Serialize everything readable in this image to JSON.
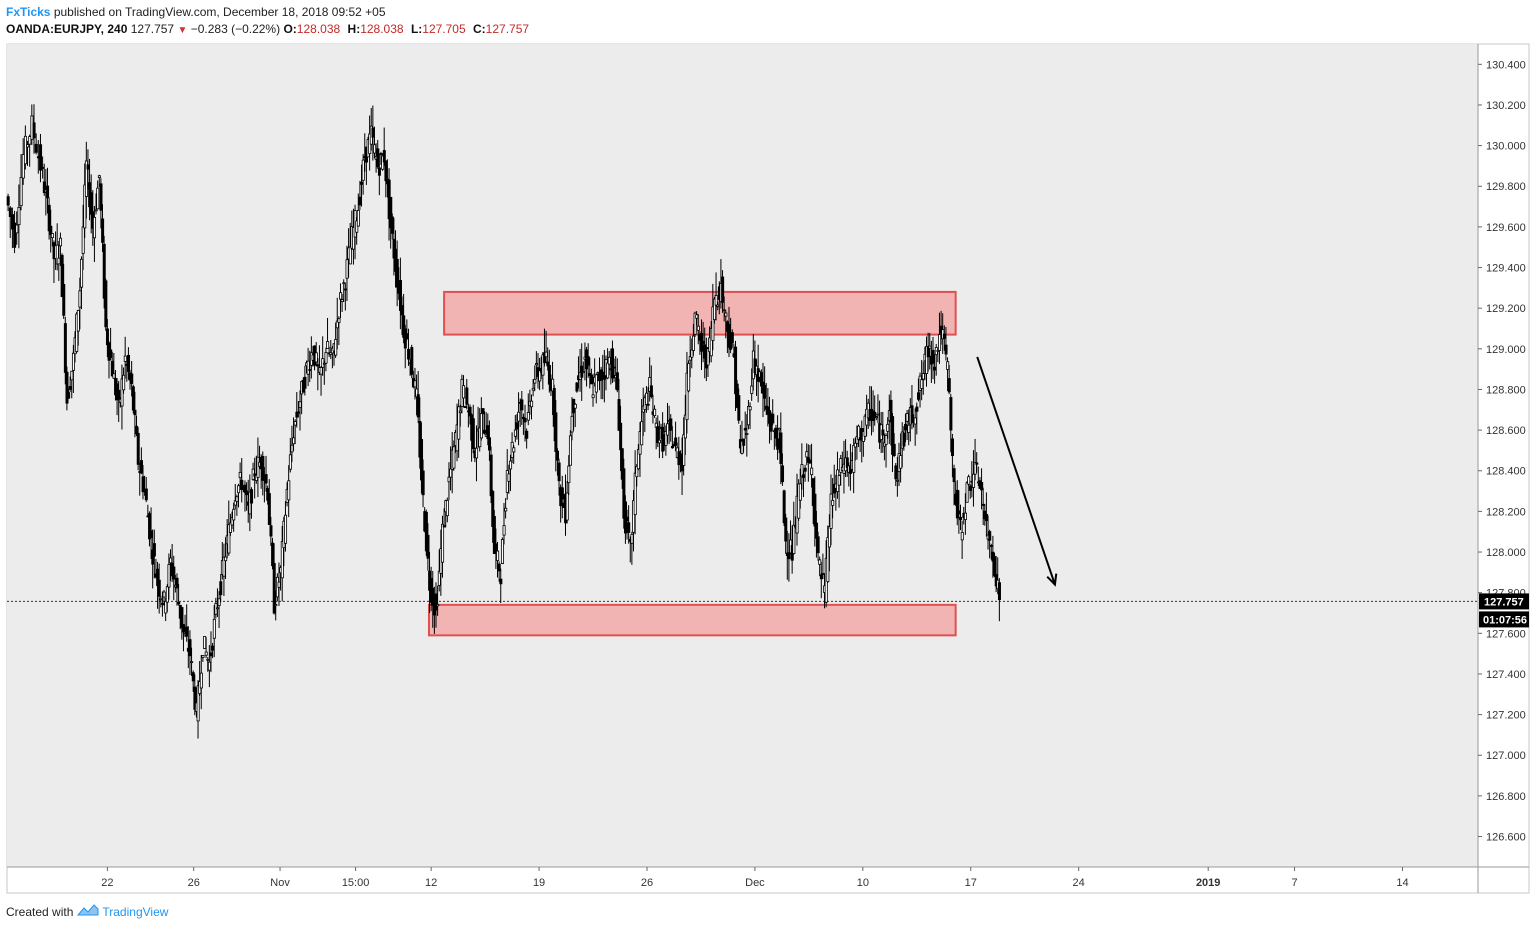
{
  "header": {
    "author": "FxTicks",
    "published_text": " published on TradingView.com, December 18, 2018 09:52 +05",
    "symbol": "OANDA:EURJPY, 240",
    "last": "127.757",
    "change": "−0.283 (−0.22%)",
    "open_label": "O:",
    "open": "128.038",
    "high_label": "H:",
    "high": "128.038",
    "low_label": "L:",
    "low": "127.705",
    "close_label": "C:",
    "close": "127.757"
  },
  "footer": {
    "created_with": "Created with",
    "brand": "TradingView"
  },
  "colors": {
    "plot_bg": "#ececec",
    "zone_fill": "#f2b3b3",
    "zone_stroke": "#e05050",
    "candle": "#000000",
    "price_tag_bg": "#000000",
    "price_tag_text": "#ffffff"
  },
  "chart_data": {
    "type": "candlestick",
    "symbol": "OANDA:EURJPY",
    "timeframe": "240",
    "ylim": [
      126.45,
      130.5
    ],
    "y_ticks": [
      "130.400",
      "130.200",
      "130.000",
      "129.800",
      "129.600",
      "129.400",
      "129.200",
      "129.000",
      "128.800",
      "128.600",
      "128.400",
      "128.200",
      "128.000",
      "127.800",
      "127.600",
      "127.400",
      "127.200",
      "127.000",
      "126.800",
      "126.600"
    ],
    "x_ticks": [
      {
        "label": "22",
        "bold": false,
        "x": 1
      },
      {
        "label": "26",
        "bold": false,
        "x": 5
      },
      {
        "label": "Nov",
        "bold": false,
        "x": 9
      },
      {
        "label": "15:00",
        "bold": false,
        "x": 12.5
      },
      {
        "label": "12",
        "bold": false,
        "x": 16
      },
      {
        "label": "19",
        "bold": false,
        "x": 21
      },
      {
        "label": "26",
        "bold": false,
        "x": 26
      },
      {
        "label": "Dec",
        "bold": false,
        "x": 31
      },
      {
        "label": "10",
        "bold": false,
        "x": 36
      },
      {
        "label": "17",
        "bold": false,
        "x": 41
      },
      {
        "label": "24",
        "bold": false,
        "x": 46
      },
      {
        "label": "2019",
        "bold": true,
        "x": 52
      },
      {
        "label": "7",
        "bold": false,
        "x": 56
      },
      {
        "label": "14",
        "bold": false,
        "x": 61
      }
    ],
    "x_axis_unit": "trading days (Oct 22 = 1)",
    "xlim": [
      -3.65,
      64.5
    ],
    "close_series": [
      [
        -3.6,
        129.75
      ],
      [
        -3.2,
        129.55
      ],
      [
        -2.8,
        129.95
      ],
      [
        -2.4,
        130.1
      ],
      [
        -2.0,
        129.9
      ],
      [
        -1.7,
        129.7
      ],
      [
        -1.4,
        129.45
      ],
      [
        -1.1,
        129.5
      ],
      [
        -0.8,
        128.75
      ],
      [
        -0.5,
        128.95
      ],
      [
        -0.2,
        129.3
      ],
      [
        0.1,
        129.9
      ],
      [
        0.4,
        129.6
      ],
      [
        0.7,
        129.85
      ],
      [
        1.0,
        129.1
      ],
      [
        1.3,
        128.9
      ],
      [
        1.6,
        128.7
      ],
      [
        1.9,
        128.95
      ],
      [
        2.2,
        128.8
      ],
      [
        2.5,
        128.45
      ],
      [
        2.8,
        128.3
      ],
      [
        3.1,
        128.05
      ],
      [
        3.4,
        127.85
      ],
      [
        3.7,
        127.75
      ],
      [
        4.0,
        127.95
      ],
      [
        4.3,
        127.8
      ],
      [
        4.6,
        127.6
      ],
      [
        4.9,
        127.5
      ],
      [
        5.2,
        127.2
      ],
      [
        5.5,
        127.55
      ],
      [
        5.8,
        127.45
      ],
      [
        6.1,
        127.7
      ],
      [
        6.4,
        127.9
      ],
      [
        6.7,
        128.1
      ],
      [
        7.0,
        128.3
      ],
      [
        7.3,
        128.35
      ],
      [
        7.6,
        128.2
      ],
      [
        7.9,
        128.4
      ],
      [
        8.2,
        128.45
      ],
      [
        8.5,
        128.3
      ],
      [
        8.8,
        127.75
      ],
      [
        9.1,
        127.9
      ],
      [
        9.4,
        128.3
      ],
      [
        9.7,
        128.6
      ],
      [
        10.0,
        128.75
      ],
      [
        10.3,
        128.9
      ],
      [
        10.6,
        129.0
      ],
      [
        10.9,
        128.85
      ],
      [
        11.2,
        129.0
      ],
      [
        11.5,
        128.95
      ],
      [
        11.8,
        129.2
      ],
      [
        12.1,
        129.35
      ],
      [
        12.4,
        129.55
      ],
      [
        12.7,
        129.7
      ],
      [
        13.0,
        129.95
      ],
      [
        13.3,
        130.05
      ],
      [
        13.6,
        129.9
      ],
      [
        13.9,
        129.95
      ],
      [
        14.2,
        129.6
      ],
      [
        14.5,
        129.35
      ],
      [
        14.8,
        129.1
      ],
      [
        15.1,
        128.95
      ],
      [
        15.4,
        128.75
      ],
      [
        15.7,
        128.25
      ],
      [
        16.0,
        127.85
      ],
      [
        16.3,
        127.7
      ],
      [
        16.6,
        128.1
      ],
      [
        16.9,
        128.35
      ],
      [
        17.2,
        128.55
      ],
      [
        17.5,
        128.8
      ],
      [
        17.8,
        128.7
      ],
      [
        18.1,
        128.5
      ],
      [
        18.4,
        128.65
      ],
      [
        18.7,
        128.6
      ],
      [
        19.0,
        128.0
      ],
      [
        19.3,
        127.9
      ],
      [
        19.6,
        128.4
      ],
      [
        19.9,
        128.55
      ],
      [
        20.2,
        128.75
      ],
      [
        20.5,
        128.6
      ],
      [
        20.8,
        128.85
      ],
      [
        21.1,
        128.9
      ],
      [
        21.4,
        128.95
      ],
      [
        21.7,
        128.8
      ],
      [
        22.0,
        128.3
      ],
      [
        22.3,
        128.2
      ],
      [
        22.6,
        128.7
      ],
      [
        22.9,
        128.85
      ],
      [
        23.2,
        128.95
      ],
      [
        23.5,
        128.8
      ],
      [
        23.8,
        128.85
      ],
      [
        24.1,
        128.9
      ],
      [
        24.4,
        128.95
      ],
      [
        24.7,
        128.8
      ],
      [
        25.0,
        128.2
      ],
      [
        25.3,
        128.0
      ],
      [
        25.6,
        128.45
      ],
      [
        25.9,
        128.7
      ],
      [
        26.2,
        128.8
      ],
      [
        26.5,
        128.6
      ],
      [
        26.8,
        128.55
      ],
      [
        27.1,
        128.6
      ],
      [
        27.4,
        128.5
      ],
      [
        27.7,
        128.45
      ],
      [
        28.0,
        128.95
      ],
      [
        28.3,
        129.15
      ],
      [
        28.6,
        129.0
      ],
      [
        28.9,
        128.95
      ],
      [
        29.2,
        129.25
      ],
      [
        29.5,
        129.3
      ],
      [
        29.8,
        129.1
      ],
      [
        30.1,
        128.95
      ],
      [
        30.4,
        128.5
      ],
      [
        30.7,
        128.6
      ],
      [
        31.0,
        128.95
      ],
      [
        31.3,
        128.85
      ],
      [
        31.6,
        128.7
      ],
      [
        31.9,
        128.6
      ],
      [
        32.2,
        128.55
      ],
      [
        32.5,
        128.05
      ],
      [
        32.8,
        128.0
      ],
      [
        33.1,
        128.3
      ],
      [
        33.4,
        128.45
      ],
      [
        33.7,
        128.4
      ],
      [
        34.0,
        127.95
      ],
      [
        34.3,
        127.8
      ],
      [
        34.6,
        128.25
      ],
      [
        34.9,
        128.35
      ],
      [
        35.2,
        128.45
      ],
      [
        35.5,
        128.4
      ],
      [
        35.8,
        128.55
      ],
      [
        36.1,
        128.6
      ],
      [
        36.4,
        128.7
      ],
      [
        36.7,
        128.65
      ],
      [
        37.0,
        128.55
      ],
      [
        37.3,
        128.7
      ],
      [
        37.6,
        128.35
      ],
      [
        37.9,
        128.55
      ],
      [
        38.2,
        128.65
      ],
      [
        38.5,
        128.7
      ],
      [
        38.8,
        128.85
      ],
      [
        39.1,
        129.0
      ],
      [
        39.4,
        128.95
      ],
      [
        39.7,
        129.1
      ],
      [
        40.0,
        128.9
      ],
      [
        40.3,
        128.3
      ],
      [
        40.6,
        128.1
      ],
      [
        40.9,
        128.3
      ],
      [
        41.2,
        128.4
      ],
      [
        41.5,
        128.35
      ],
      [
        41.8,
        128.1
      ],
      [
        42.1,
        128.0
      ],
      [
        42.4,
        127.757
      ]
    ],
    "zones": [
      {
        "name": "resistance",
        "x0": 16.6,
        "x1": 40.3,
        "y0": 129.07,
        "y1": 129.28
      },
      {
        "name": "support",
        "x0": 15.9,
        "x1": 40.3,
        "y0": 127.59,
        "y1": 127.74
      }
    ],
    "arrow": {
      "from": [
        41.3,
        128.96
      ],
      "to": [
        44.9,
        127.84
      ]
    },
    "last_price": {
      "value": 127.757,
      "label": "127.757",
      "countdown": "01:07:56"
    },
    "price_line": 127.757
  }
}
